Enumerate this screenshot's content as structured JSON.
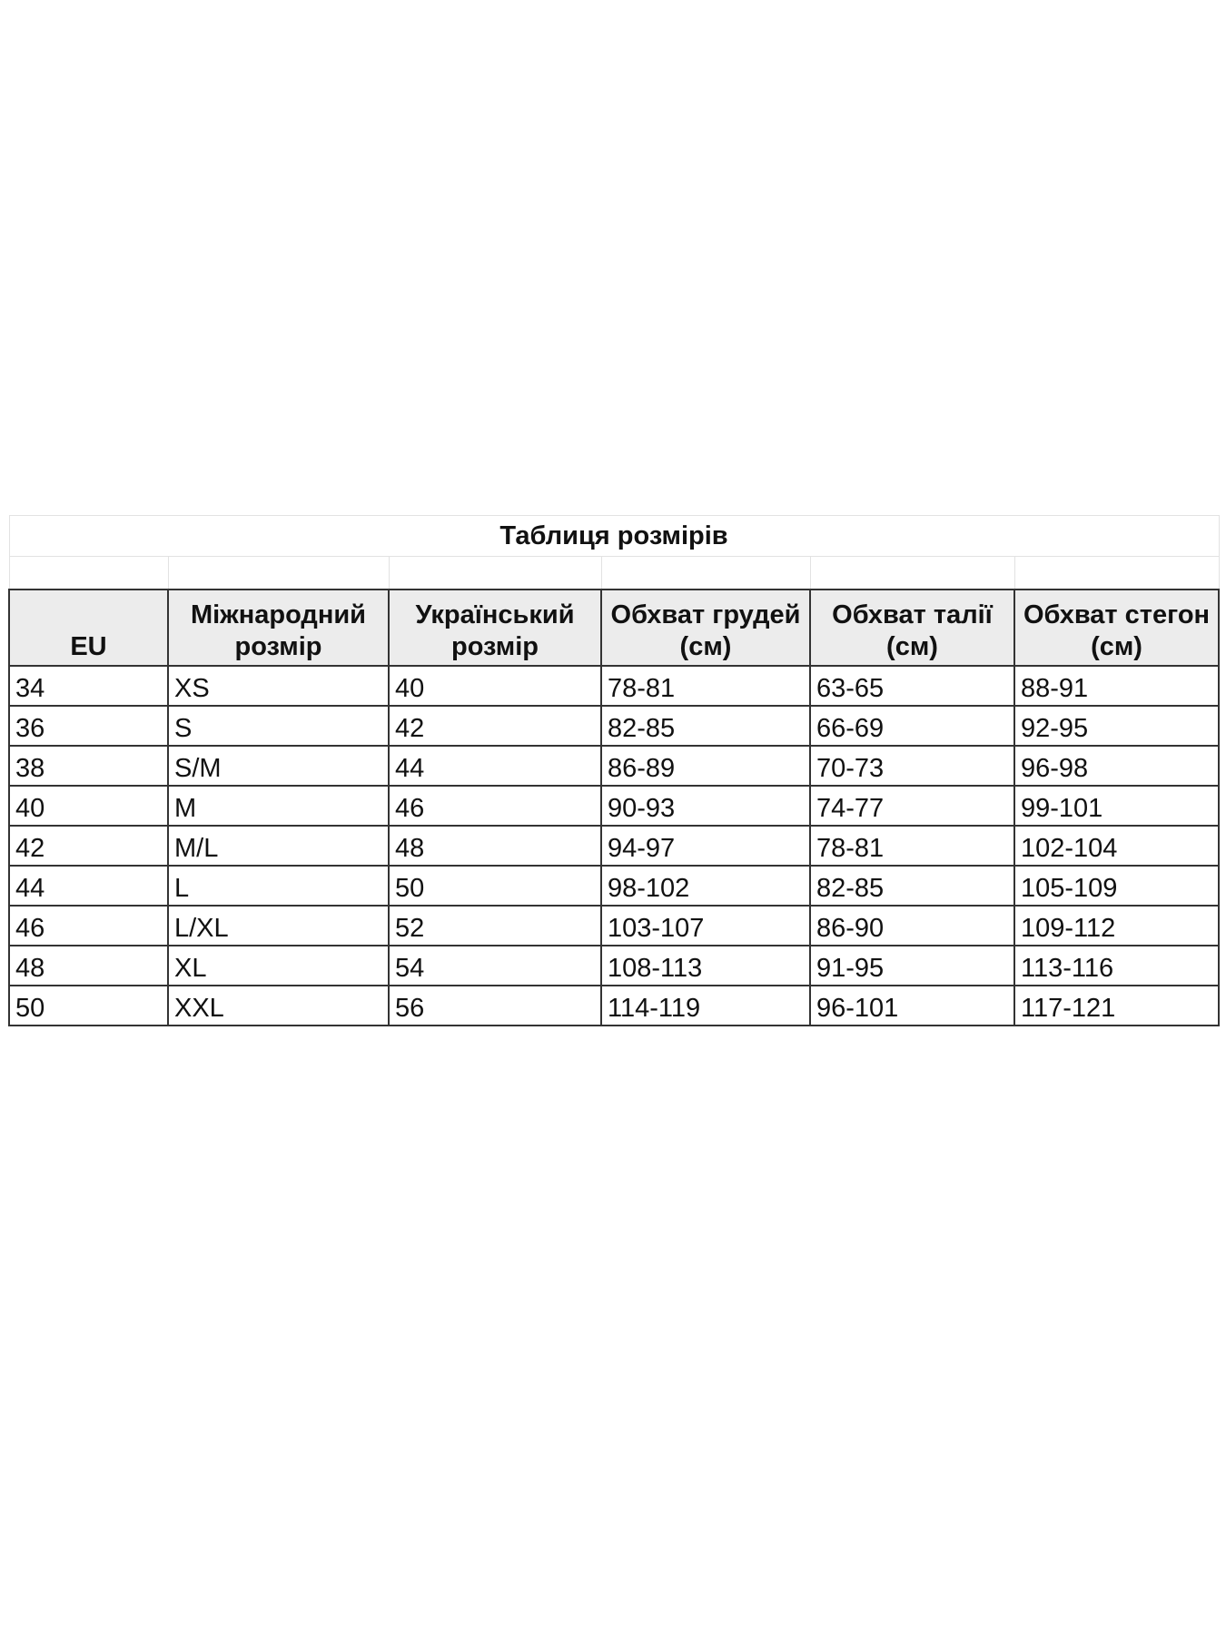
{
  "title": "Таблиця розмірів",
  "headers": [
    "EU",
    "Міжнародний розмір",
    "Український розмір",
    "Обхват грудей (см)",
    "Обхват талії (см)",
    "Обхват стегон (см)"
  ],
  "rows": [
    [
      "34",
      "XS",
      "40",
      "78-81",
      "63-65",
      "88-91"
    ],
    [
      "36",
      "S",
      "42",
      "82-85",
      "66-69",
      "92-95"
    ],
    [
      "38",
      "S/M",
      "44",
      "86-89",
      "70-73",
      "96-98"
    ],
    [
      "40",
      "M",
      "46",
      "90-93",
      "74-77",
      "99-101"
    ],
    [
      "42",
      "M/L",
      "48",
      "94-97",
      "78-81",
      "102-104"
    ],
    [
      "44",
      "L",
      "50",
      "98-102",
      "82-85",
      "105-109"
    ],
    [
      "46",
      "L/XL",
      "52",
      "103-107",
      "86-90",
      "109-112"
    ],
    [
      "48",
      "XL",
      "54",
      "108-113",
      "91-95",
      "113-116"
    ],
    [
      "50",
      "XXL",
      "56",
      "114-119",
      "96-101",
      "117-121"
    ]
  ]
}
